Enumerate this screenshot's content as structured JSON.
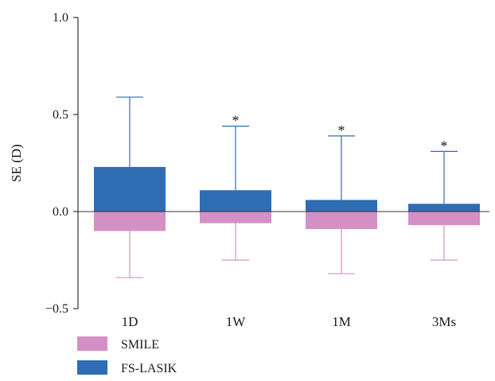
{
  "chart_data": {
    "type": "bar",
    "title": "",
    "xlabel": "",
    "ylabel": "SE (D)",
    "ylim": [
      -0.5,
      1.0
    ],
    "yticks": [
      {
        "value": -0.5,
        "label": "−0.5"
      },
      {
        "value": 0.0,
        "label": "0.0"
      },
      {
        "value": 0.5,
        "label": "0.5"
      },
      {
        "value": 1.0,
        "label": "1.0"
      }
    ],
    "categories": [
      "1D",
      "1W",
      "1M",
      "3Ms"
    ],
    "series": [
      {
        "name": "SMILE",
        "color": "#d490c4",
        "values": [
          -0.1,
          -0.06,
          -0.09,
          -0.07
        ],
        "error_low": [
          -0.34,
          -0.25,
          -0.32,
          -0.25
        ]
      },
      {
        "name": "FS-LASIK",
        "color": "#2e6db4",
        "values": [
          0.23,
          0.11,
          0.06,
          0.04
        ],
        "error_high": [
          0.59,
          0.44,
          0.39,
          0.31
        ]
      }
    ],
    "annotations": [
      {
        "category": "1W",
        "text": "*"
      },
      {
        "category": "1M",
        "text": "*"
      },
      {
        "category": "3Ms",
        "text": "*"
      }
    ],
    "legend": "bottom-left",
    "grid": false
  }
}
